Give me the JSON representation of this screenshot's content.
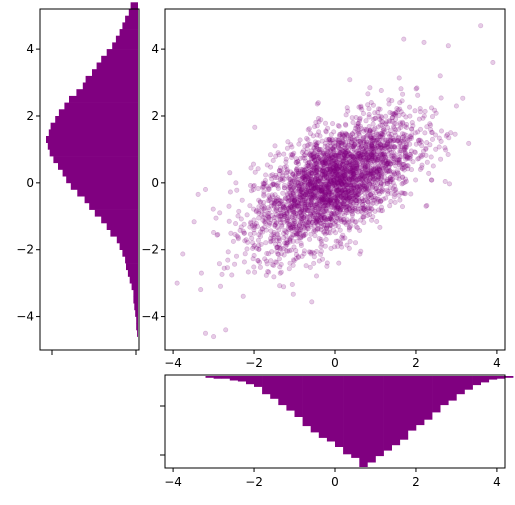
{
  "colors": {
    "points": "#800080",
    "bars": "#800080",
    "axes": "#000000",
    "background": "#ffffff"
  },
  "chart_data": [
    {
      "type": "scatter",
      "title": "",
      "xlabel": "",
      "ylabel": "",
      "xlim": [
        -4.2,
        4.2
      ],
      "ylim": [
        -5.0,
        5.2
      ],
      "xticks": [
        -4,
        -2,
        0,
        2,
        4
      ],
      "yticks": [
        -4,
        -2,
        0,
        2,
        4
      ],
      "tick_labels": {
        "x": [
          "−4",
          "−2",
          "0",
          "2",
          "4"
        ],
        "y": [
          "−4",
          "−2",
          "0",
          "2",
          "4"
        ]
      },
      "grid": false,
      "legend": "none",
      "point_alpha": 0.2,
      "approx_point_count": 3000,
      "correlation": 0.6,
      "x_mean": 0.0,
      "x_std": 1.0,
      "y_mean": 0.0,
      "y_std": 1.0,
      "notable_points": [
        {
          "x": -3.2,
          "y": -4.5
        },
        {
          "x": -3.0,
          "y": -4.6
        },
        {
          "x": -2.7,
          "y": -4.4
        },
        {
          "x": -3.9,
          "y": -3.0
        },
        {
          "x": -3.3,
          "y": -2.7
        },
        {
          "x": -3.2,
          "y": -0.2
        },
        {
          "x": -2.6,
          "y": 0.3
        },
        {
          "x": 3.6,
          "y": 4.7
        },
        {
          "x": 3.9,
          "y": 3.6
        },
        {
          "x": 2.8,
          "y": 4.1
        },
        {
          "x": 2.2,
          "y": 4.2
        },
        {
          "x": 1.7,
          "y": 4.3
        },
        {
          "x": 2.6,
          "y": 3.2
        },
        {
          "x": 3.0,
          "y": 2.3
        }
      ]
    },
    {
      "type": "bar",
      "orientation": "horizontal",
      "description_of_values": "histogram of y values shown as bars growing left from the right axis edge",
      "bin_width": 0.2,
      "bin_edges_start": -4.6,
      "value_max": 1.0,
      "values_relative": [
        0.01,
        0.02,
        0.02,
        0.03,
        0.04,
        0.05,
        0.05,
        0.07,
        0.09,
        0.11,
        0.13,
        0.14,
        0.17,
        0.2,
        0.23,
        0.3,
        0.34,
        0.4,
        0.47,
        0.53,
        0.58,
        0.66,
        0.73,
        0.78,
        0.82,
        0.87,
        0.92,
        0.96,
        0.98,
        1.0,
        0.97,
        0.95,
        0.9,
        0.86,
        0.8,
        0.75,
        0.67,
        0.6,
        0.57,
        0.5,
        0.45,
        0.4,
        0.34,
        0.28,
        0.24,
        0.2,
        0.17,
        0.14,
        0.1,
        0.08
      ],
      "yticks": [
        -4,
        -2,
        0,
        2,
        4
      ],
      "tick_labels": {
        "y": [
          "−4",
          "−2",
          "0",
          "2",
          "4"
        ]
      },
      "ylim": [
        -5.0,
        5.2
      ],
      "grid": false,
      "legend": "none"
    },
    {
      "type": "bar",
      "orientation": "vertical-down",
      "description_of_values": "histogram of x values shown as bars hanging down from the top axis edge",
      "bin_width": 0.2,
      "bin_edges_start": -3.2,
      "value_max": 1.0,
      "values_relative": [
        0.02,
        0.03,
        0.03,
        0.05,
        0.06,
        0.09,
        0.12,
        0.2,
        0.25,
        0.32,
        0.38,
        0.45,
        0.55,
        0.62,
        0.68,
        0.72,
        0.78,
        0.86,
        0.9,
        1.0,
        0.95,
        0.88,
        0.82,
        0.76,
        0.7,
        0.6,
        0.54,
        0.48,
        0.4,
        0.32,
        0.27,
        0.2,
        0.15,
        0.1,
        0.07,
        0.04,
        0.03,
        0.02
      ],
      "xlim": [
        -4.2,
        4.2
      ],
      "xticks": [
        -4,
        -2,
        0,
        2,
        4
      ],
      "tick_labels": {
        "x": [
          "−4",
          "−2",
          "0",
          "2",
          "4"
        ]
      },
      "grid": false,
      "legend": "none"
    }
  ]
}
